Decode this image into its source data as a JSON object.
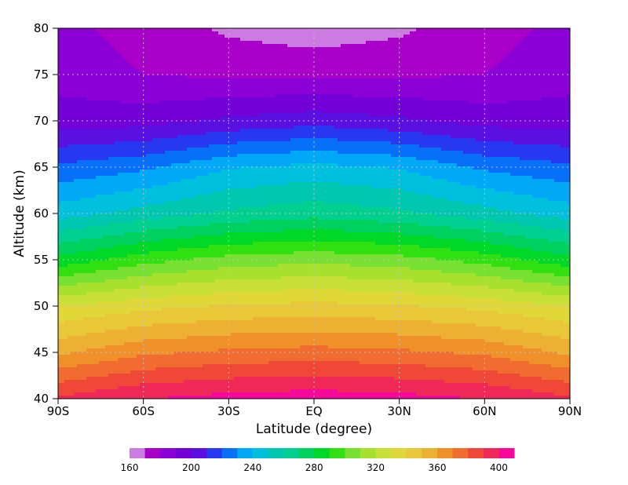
{
  "chart_data": {
    "type": "heatmap",
    "xlabel": "Latitude (degree)",
    "ylabel": "Altitude (km)",
    "xlim": [
      -90,
      90
    ],
    "ylim": [
      40,
      80
    ],
    "xticks": [
      {
        "value": -90,
        "label": "90S"
      },
      {
        "value": -60,
        "label": "60S"
      },
      {
        "value": -30,
        "label": "30S"
      },
      {
        "value": 0,
        "label": "EQ"
      },
      {
        "value": 30,
        "label": "30N"
      },
      {
        "value": 60,
        "label": "60N"
      },
      {
        "value": 90,
        "label": "90N"
      }
    ],
    "yticks": [
      {
        "value": 40,
        "label": "40"
      },
      {
        "value": 45,
        "label": "45"
      },
      {
        "value": 50,
        "label": "50"
      },
      {
        "value": 55,
        "label": "55"
      },
      {
        "value": 60,
        "label": "60"
      },
      {
        "value": 65,
        "label": "65"
      },
      {
        "value": 70,
        "label": "70"
      },
      {
        "value": 75,
        "label": "75"
      },
      {
        "value": 80,
        "label": "80"
      }
    ],
    "grid": "dotted",
    "x": [
      -90,
      -60,
      -30,
      0,
      30,
      60,
      90
    ],
    "y": [
      40,
      45,
      50,
      55,
      60,
      65,
      70,
      75,
      80
    ],
    "z": [
      [
        392,
        400,
        404,
        406,
        404,
        400,
        392
      ],
      [
        358,
        368,
        372,
        374,
        372,
        368,
        358
      ],
      [
        330,
        337,
        341,
        343,
        341,
        337,
        330
      ],
      [
        283,
        296,
        304,
        307,
        304,
        296,
        283
      ],
      [
        245,
        254,
        262,
        266,
        262,
        254,
        245
      ],
      [
        222,
        228,
        239,
        243,
        239,
        228,
        222
      ],
      [
        195,
        196,
        202,
        206,
        202,
        196,
        195
      ],
      [
        186,
        180,
        178,
        178,
        178,
        180,
        186
      ],
      [
        183,
        176,
        168,
        164,
        168,
        176,
        183
      ]
    ],
    "colorbar": {
      "levels": [
        160,
        170,
        180,
        190,
        200,
        210,
        220,
        230,
        240,
        250,
        260,
        270,
        280,
        290,
        300,
        310,
        320,
        330,
        340,
        350,
        360,
        370,
        380,
        390,
        400
      ],
      "colors": [
        "#cc7ce0",
        "#a800c8",
        "#8c00d8",
        "#7400d8",
        "#5a10e0",
        "#2838f0",
        "#0870f8",
        "#00a8f8",
        "#00c0e0",
        "#00c8b0",
        "#00d090",
        "#00d060",
        "#00d828",
        "#30e010",
        "#78e030",
        "#a8e030",
        "#c8e038",
        "#e0d838",
        "#e8c838",
        "#ecb032",
        "#f09028",
        "#f06c30",
        "#f04838",
        "#f02858",
        "#f8089a"
      ],
      "tick_labels": [
        "160",
        "200",
        "240",
        "280",
        "320",
        "360",
        "400"
      ]
    }
  }
}
